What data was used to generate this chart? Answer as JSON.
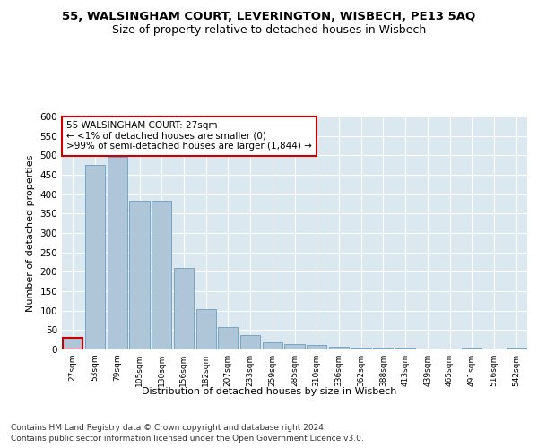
{
  "title": "55, WALSINGHAM COURT, LEVERINGTON, WISBECH, PE13 5AQ",
  "subtitle": "Size of property relative to detached houses in Wisbech",
  "xlabel": "Distribution of detached houses by size in Wisbech",
  "ylabel": "Number of detached properties",
  "categories": [
    "27sqm",
    "53sqm",
    "79sqm",
    "105sqm",
    "130sqm",
    "156sqm",
    "182sqm",
    "207sqm",
    "233sqm",
    "259sqm",
    "285sqm",
    "310sqm",
    "336sqm",
    "362sqm",
    "388sqm",
    "413sqm",
    "439sqm",
    "465sqm",
    "491sqm",
    "516sqm",
    "542sqm"
  ],
  "values": [
    30,
    475,
    497,
    383,
    383,
    209,
    105,
    57,
    37,
    19,
    14,
    11,
    8,
    4,
    4,
    4,
    0,
    0,
    4,
    0,
    4
  ],
  "bar_color": "#aec6d8",
  "bar_edge_color": "#6a9dbf",
  "highlight_index": 0,
  "annotation_text": "55 WALSINGHAM COURT: 27sqm\n← <1% of detached houses are smaller (0)\n>99% of semi-detached houses are larger (1,844) →",
  "annotation_box_color": "#ffffff",
  "annotation_box_edge_color": "#cc0000",
  "ylim": [
    0,
    600
  ],
  "yticks": [
    0,
    50,
    100,
    150,
    200,
    250,
    300,
    350,
    400,
    450,
    500,
    550,
    600
  ],
  "plot_bg_color": "#dce8f0",
  "footer_line1": "Contains HM Land Registry data © Crown copyright and database right 2024.",
  "footer_line2": "Contains public sector information licensed under the Open Government Licence v3.0.",
  "title_fontsize": 9.5,
  "subtitle_fontsize": 9,
  "ylabel_fontsize": 8,
  "xtick_fontsize": 6.5,
  "ytick_fontsize": 7.5,
  "annotation_fontsize": 7.5,
  "xlabel_fontsize": 8,
  "footer_fontsize": 6.5
}
